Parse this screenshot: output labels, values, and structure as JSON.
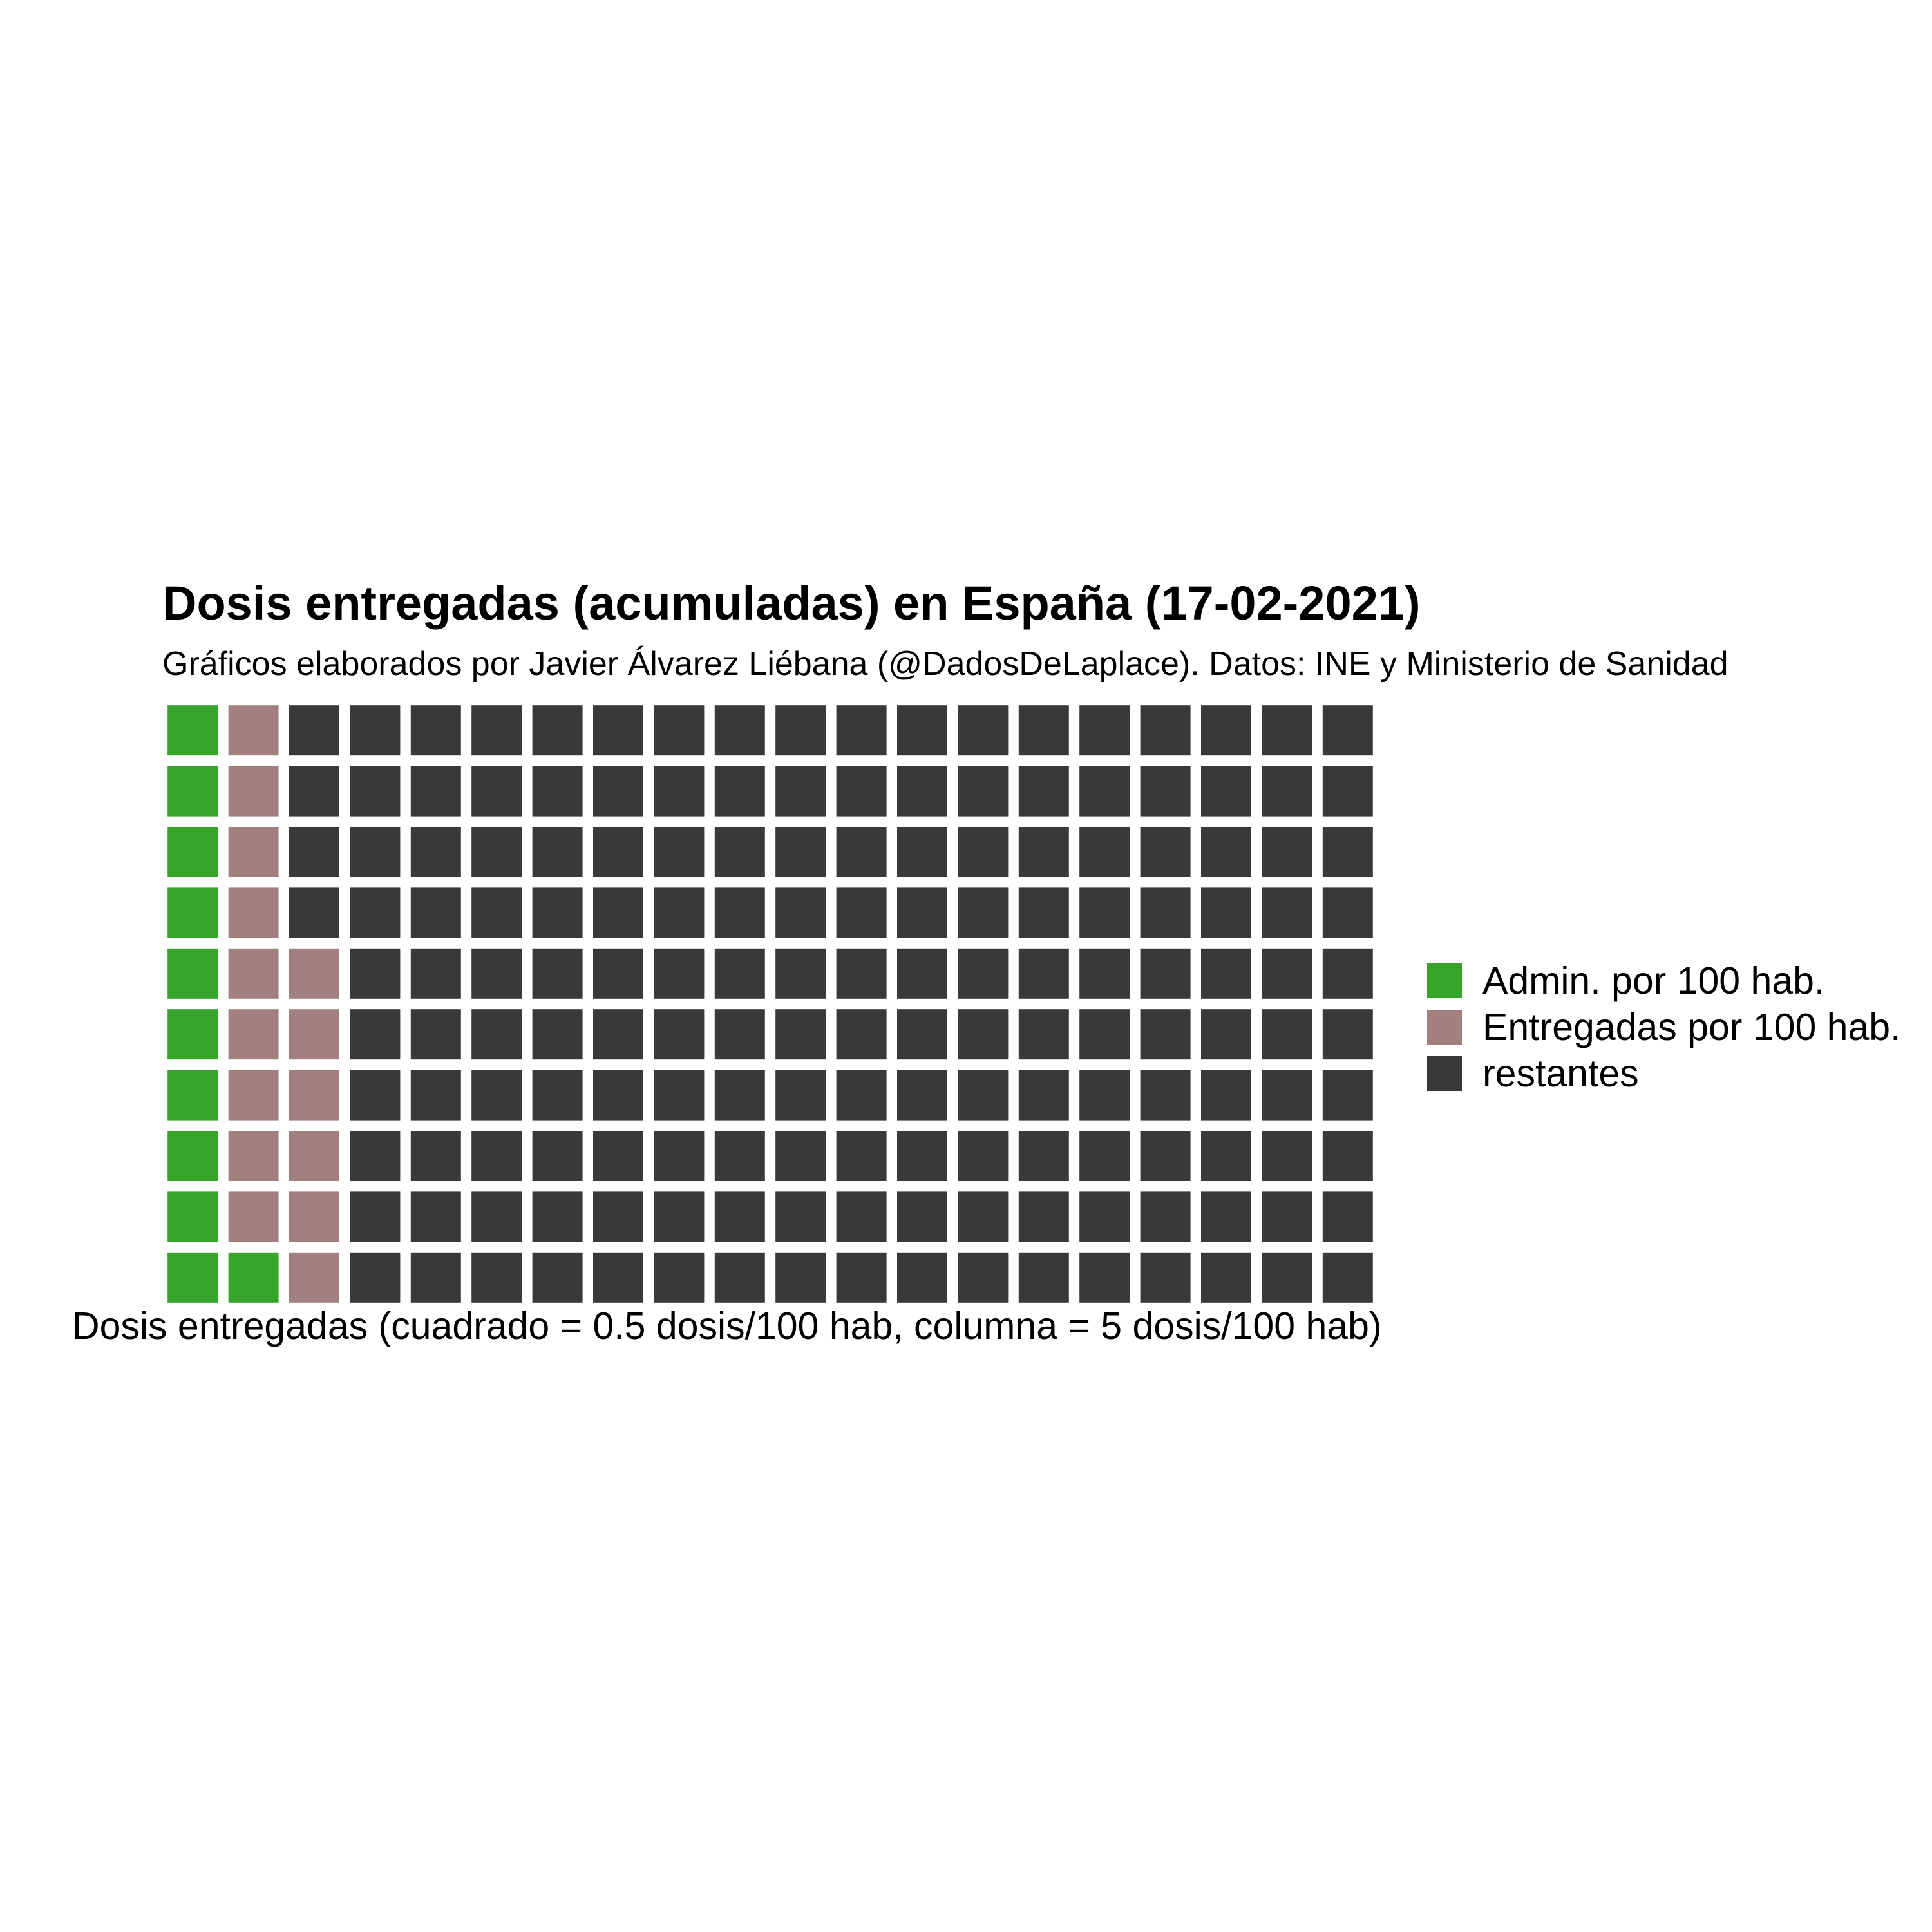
{
  "chart_data": {
    "type": "waffle",
    "title": "Dosis entregadas (acumuladas) en España (17-02-2021)",
    "subtitle": "Gráficos elaborados por Javier Álvarez Liébana (@DadosDeLaplace). Datos: INE y Ministerio de Sanidad",
    "xlabel": "Dosis entregadas (cuadrado = 0.5 dosis/100 hab, columna = 5 dosis/100 hab)",
    "rows": 10,
    "columns": 20,
    "fill_order": "column-wise, bottom to top",
    "series": [
      {
        "name": "Admin. por 100 hab.",
        "squares": 11,
        "color": "#37a52b"
      },
      {
        "name": "Entregadas por 100 hab.",
        "squares": 15,
        "color": "#a28080"
      },
      {
        "name": "restantes",
        "squares": 174,
        "color": "#393939"
      }
    ],
    "legend_position": "right"
  }
}
